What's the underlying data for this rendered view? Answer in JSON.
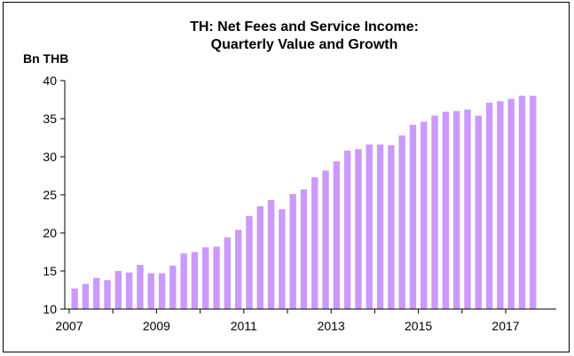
{
  "chart_data": {
    "type": "bar",
    "title_line1": "TH: Net Fees and Service Income:",
    "title_line2": "Quarterly Value and Growth",
    "ylabel": "Bn THB",
    "xlabel": "",
    "ylim": [
      10,
      40
    ],
    "yticks": [
      "10",
      "15",
      "20",
      "25",
      "30",
      "35",
      "40"
    ],
    "xticks": [
      {
        "label": "2007",
        "year": 2007
      },
      {
        "label": "2009",
        "year": 2009
      },
      {
        "label": "2011",
        "year": 2011
      },
      {
        "label": "2013",
        "year": 2013
      },
      {
        "label": "2015",
        "year": 2015
      },
      {
        "label": "2017",
        "year": 2017
      }
    ],
    "bar_color": "#cc99ff",
    "grid": false,
    "legend": "none",
    "categories": [
      "2007 Q1",
      "2007 Q2",
      "2007 Q3",
      "2007 Q4",
      "2008 Q1",
      "2008 Q2",
      "2008 Q3",
      "2008 Q4",
      "2009 Q1",
      "2009 Q2",
      "2009 Q3",
      "2009 Q4",
      "2010 Q1",
      "2010 Q2",
      "2010 Q3",
      "2010 Q4",
      "2011 Q1",
      "2011 Q2",
      "2011 Q3",
      "2011 Q4",
      "2012 Q1",
      "2012 Q2",
      "2012 Q3",
      "2012 Q4",
      "2013 Q1",
      "2013 Q2",
      "2013 Q3",
      "2013 Q4",
      "2014 Q1",
      "2014 Q2",
      "2014 Q3",
      "2014 Q4",
      "2015 Q1",
      "2015 Q2",
      "2015 Q3",
      "2015 Q4",
      "2016 Q1",
      "2016 Q2",
      "2016 Q3",
      "2016 Q4",
      "2017 Q1",
      "2017 Q2",
      "2017 Q3"
    ],
    "values": [
      12.7,
      13.3,
      14.1,
      13.8,
      15.0,
      14.8,
      15.8,
      14.7,
      14.7,
      15.7,
      17.3,
      17.5,
      18.1,
      18.2,
      19.4,
      20.4,
      22.2,
      23.5,
      24.3,
      23.1,
      25.1,
      25.7,
      27.3,
      28.2,
      29.4,
      30.8,
      31.0,
      31.6,
      31.6,
      31.5,
      32.8,
      34.2,
      34.6,
      35.4,
      35.9,
      36.0,
      36.2,
      35.4,
      37.1,
      37.3,
      37.6,
      38.0,
      38.0
    ]
  }
}
